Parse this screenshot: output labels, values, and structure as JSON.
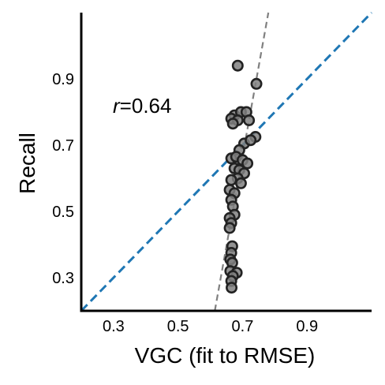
{
  "chart_data": {
    "type": "scatter",
    "xlabel": "VGC (fit to RMSE)",
    "ylabel": "Recall",
    "xlim": [
      0.2,
      1.1
    ],
    "ylim": [
      0.2,
      1.1
    ],
    "xticks": [
      "0.3",
      "0.5",
      "0.7",
      "0.9"
    ],
    "yticks": [
      "0.3",
      "0.5",
      "0.7",
      "0.9"
    ],
    "annotation": {
      "var": "r",
      "rest": "=0.64"
    },
    "grid": false,
    "identity_line": {
      "x": [
        0.2,
        1.1
      ],
      "y": [
        0.2,
        1.1
      ],
      "style": "dashed",
      "color": "#1f77b4"
    },
    "fit_line": {
      "x": [
        0.614,
        0.78
      ],
      "y": [
        0.2,
        1.1
      ],
      "style": "dashed",
      "color": "#808080"
    },
    "marker_color": "#808080",
    "points": [
      {
        "x": 0.685,
        "y": 0.94
      },
      {
        "x": 0.743,
        "y": 0.885
      },
      {
        "x": 0.675,
        "y": 0.79
      },
      {
        "x": 0.695,
        "y": 0.8
      },
      {
        "x": 0.712,
        "y": 0.8
      },
      {
        "x": 0.665,
        "y": 0.78
      },
      {
        "x": 0.685,
        "y": 0.775
      },
      {
        "x": 0.67,
        "y": 0.765
      },
      {
        "x": 0.72,
        "y": 0.775
      },
      {
        "x": 0.74,
        "y": 0.725
      },
      {
        "x": 0.705,
        "y": 0.705
      },
      {
        "x": 0.725,
        "y": 0.715
      },
      {
        "x": 0.69,
        "y": 0.685
      },
      {
        "x": 0.665,
        "y": 0.66
      },
      {
        "x": 0.68,
        "y": 0.665
      },
      {
        "x": 0.7,
        "y": 0.655
      },
      {
        "x": 0.715,
        "y": 0.645
      },
      {
        "x": 0.675,
        "y": 0.63
      },
      {
        "x": 0.69,
        "y": 0.625
      },
      {
        "x": 0.705,
        "y": 0.615
      },
      {
        "x": 0.685,
        "y": 0.6
      },
      {
        "x": 0.665,
        "y": 0.595
      },
      {
        "x": 0.695,
        "y": 0.585
      },
      {
        "x": 0.66,
        "y": 0.565
      },
      {
        "x": 0.675,
        "y": 0.555
      },
      {
        "x": 0.665,
        "y": 0.535
      },
      {
        "x": 0.67,
        "y": 0.515
      },
      {
        "x": 0.675,
        "y": 0.49
      },
      {
        "x": 0.66,
        "y": 0.48
      },
      {
        "x": 0.665,
        "y": 0.465
      },
      {
        "x": 0.66,
        "y": 0.45
      },
      {
        "x": 0.668,
        "y": 0.395
      },
      {
        "x": 0.665,
        "y": 0.375
      },
      {
        "x": 0.662,
        "y": 0.355
      },
      {
        "x": 0.668,
        "y": 0.345
      },
      {
        "x": 0.662,
        "y": 0.32
      },
      {
        "x": 0.682,
        "y": 0.315
      },
      {
        "x": 0.67,
        "y": 0.305
      },
      {
        "x": 0.665,
        "y": 0.29
      },
      {
        "x": 0.666,
        "y": 0.27
      }
    ]
  }
}
